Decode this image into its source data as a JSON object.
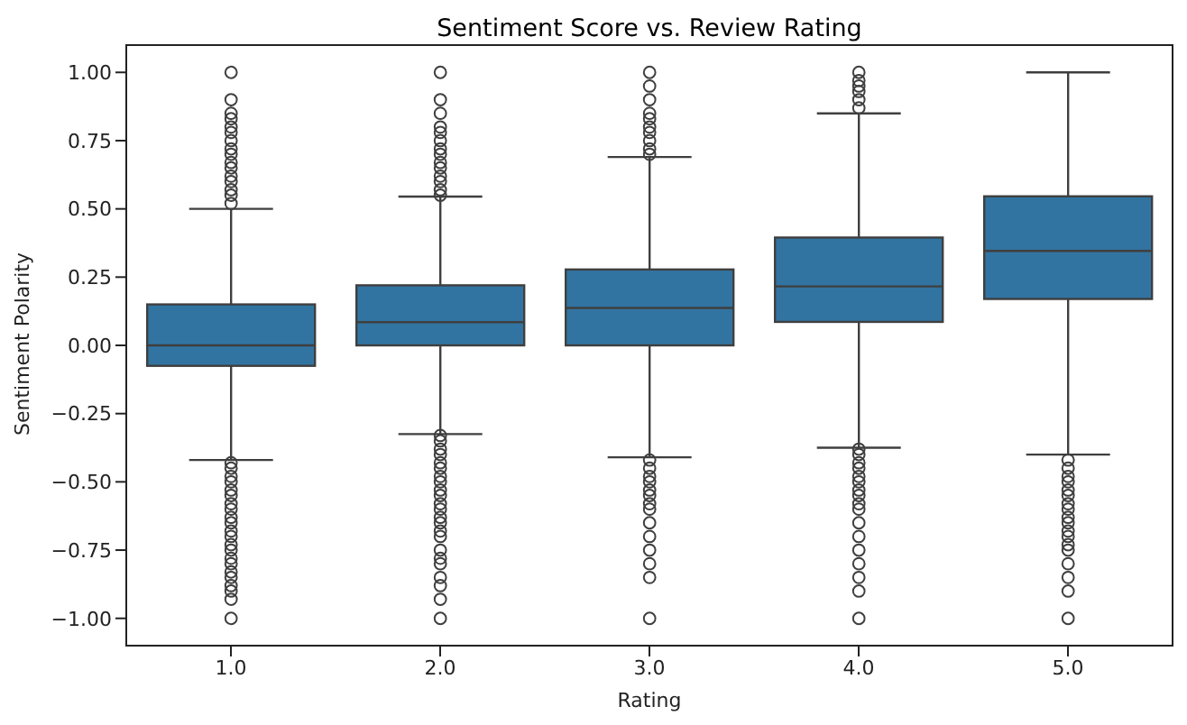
{
  "chart_data": {
    "type": "box",
    "title": "Sentiment Score vs. Review Rating",
    "xlabel": "Rating",
    "ylabel": "Sentiment Polarity",
    "categories": [
      "1.0",
      "2.0",
      "3.0",
      "4.0",
      "5.0"
    ],
    "color": "#3274a1",
    "ylim": [
      -1.1,
      1.1
    ],
    "yticks": [
      {
        "value": -1,
        "label": "−1.00"
      },
      {
        "value": -0.75,
        "label": "−0.75"
      },
      {
        "value": -0.5,
        "label": "−0.50"
      },
      {
        "value": -0.25,
        "label": "−0.25"
      },
      {
        "value": 0,
        "label": "0.00"
      },
      {
        "value": 0.25,
        "label": "0.25"
      },
      {
        "value": 0.5,
        "label": "0.50"
      },
      {
        "value": 0.75,
        "label": "0.75"
      },
      {
        "value": 1,
        "label": "1.00"
      }
    ],
    "boxes": [
      {
        "low": -0.42,
        "q1": -0.075,
        "median": 0,
        "q3": 0.15,
        "high": 0.5,
        "outliers": [
          0.52,
          0.55,
          0.57,
          0.6,
          0.62,
          0.65,
          0.67,
          0.7,
          0.72,
          0.75,
          0.78,
          0.8,
          0.83,
          0.85,
          0.9,
          1.0,
          -0.43,
          -0.45,
          -0.48,
          -0.5,
          -0.53,
          -0.55,
          -0.58,
          -0.6,
          -0.63,
          -0.65,
          -0.68,
          -0.7,
          -0.73,
          -0.75,
          -0.78,
          -0.8,
          -0.83,
          -0.85,
          -0.88,
          -0.9,
          -0.93,
          -1.0
        ]
      },
      {
        "low": -0.325,
        "q1": 0,
        "median": 0.085,
        "q3": 0.22,
        "high": 0.545,
        "outliers": [
          0.55,
          0.57,
          0.6,
          0.62,
          0.65,
          0.67,
          0.7,
          0.72,
          0.75,
          0.78,
          0.8,
          0.85,
          0.9,
          1.0,
          -0.33,
          -0.35,
          -0.38,
          -0.4,
          -0.43,
          -0.45,
          -0.48,
          -0.5,
          -0.53,
          -0.55,
          -0.58,
          -0.6,
          -0.63,
          -0.65,
          -0.68,
          -0.7,
          -0.75,
          -0.78,
          -0.8,
          -0.85,
          -0.88,
          -0.93,
          -1.0
        ]
      },
      {
        "low": -0.41,
        "q1": 0,
        "median": 0.137,
        "q3": 0.278,
        "high": 0.69,
        "outliers": [
          0.7,
          0.72,
          0.75,
          0.78,
          0.8,
          0.83,
          0.85,
          0.9,
          0.95,
          1.0,
          -0.42,
          -0.45,
          -0.48,
          -0.5,
          -0.53,
          -0.55,
          -0.58,
          -0.6,
          -0.65,
          -0.7,
          -0.75,
          -0.8,
          -0.85,
          -1.0
        ]
      },
      {
        "low": -0.375,
        "q1": 0.086,
        "median": 0.216,
        "q3": 0.395,
        "high": 0.85,
        "outliers": [
          0.87,
          0.9,
          0.93,
          0.95,
          0.97,
          1.0,
          -0.38,
          -0.4,
          -0.43,
          -0.45,
          -0.48,
          -0.5,
          -0.53,
          -0.55,
          -0.58,
          -0.6,
          -0.65,
          -0.7,
          -0.75,
          -0.8,
          -0.85,
          -0.9,
          -1.0
        ]
      },
      {
        "low": -0.4,
        "q1": 0.17,
        "median": 0.346,
        "q3": 0.546,
        "high": 1.0,
        "outliers": [
          -0.42,
          -0.45,
          -0.48,
          -0.5,
          -0.53,
          -0.55,
          -0.58,
          -0.6,
          -0.63,
          -0.65,
          -0.68,
          -0.7,
          -0.73,
          -0.75,
          -0.8,
          -0.85,
          -0.9,
          -1.0
        ]
      }
    ]
  }
}
